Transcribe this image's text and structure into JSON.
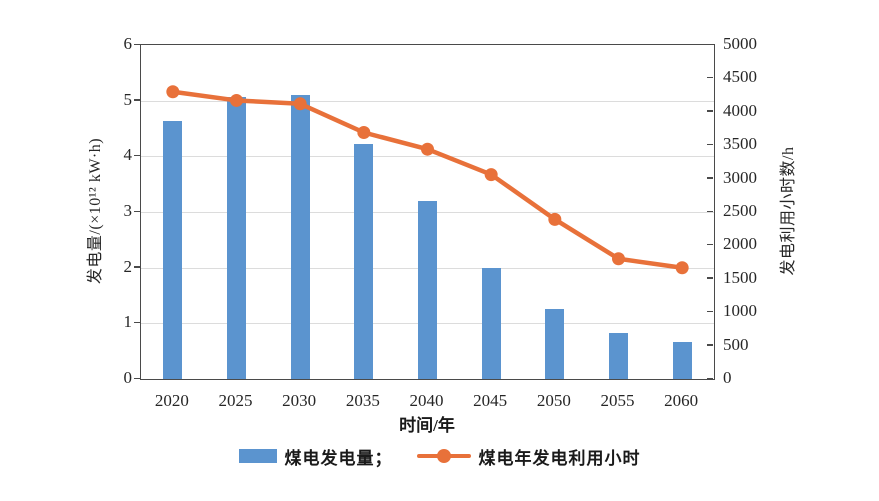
{
  "chart_data": {
    "type": "bar",
    "title": "",
    "categories": [
      "2020",
      "2025",
      "2030",
      "2035",
      "2040",
      "2045",
      "2050",
      "2055",
      "2060"
    ],
    "series": [
      {
        "name": "煤电发电量",
        "legend_label": "煤电发电量；",
        "chart_type": "bar",
        "axis": "left",
        "color": "#5b94cf",
        "values": [
          4.63,
          5.07,
          5.1,
          4.23,
          3.2,
          2.0,
          1.25,
          0.83,
          0.67
        ]
      },
      {
        "name": "煤电年发电利用小时",
        "legend_label": "煤电年发电利用小时",
        "chart_type": "line",
        "axis": "right",
        "color": "#e8713a",
        "values": [
          4300,
          4170,
          4120,
          3690,
          3440,
          3060,
          2390,
          1800,
          1665
        ]
      }
    ],
    "xlabel": "时间/年",
    "ylabel_left": "发电量/(×10¹² kW·h)",
    "ylabel_right": "发电利用小时数/h",
    "ylim_left": [
      0,
      6
    ],
    "ylim_right": [
      0,
      5000
    ],
    "yticks_left": [
      "0",
      "1",
      "2",
      "3",
      "4",
      "5",
      "6"
    ],
    "yticks_right": [
      "0",
      "500",
      "1000",
      "1500",
      "2000",
      "2500",
      "3000",
      "3500",
      "4000",
      "4500",
      "5000"
    ],
    "grid": true,
    "legend_position": "bottom"
  },
  "colors": {
    "bar": "#5b94cf",
    "line": "#e8713a",
    "axis_frame": "#4a4a4a",
    "gridline": "#dcdcdc",
    "text": "#262626"
  }
}
